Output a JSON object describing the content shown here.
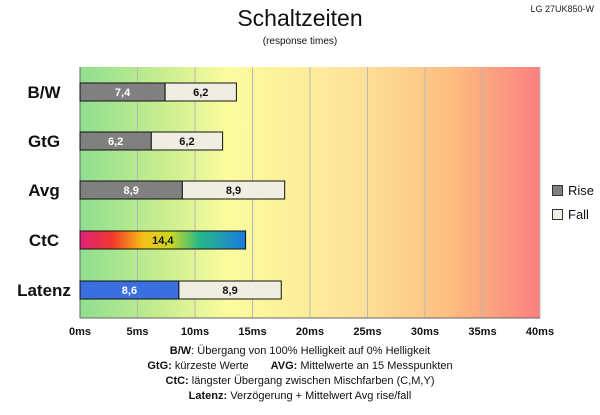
{
  "header": {
    "model": "LG 27UK850-W",
    "title": "Schaltzeiten",
    "subtitle": "(response times)"
  },
  "legend": {
    "rise_label": "Rise",
    "fall_label": "Fall"
  },
  "notes": {
    "bw_key": "B/W",
    "bw_text": ":  Übergang von 100% Helligkeit auf 0% Helligkeit",
    "gtg_key": "GtG:",
    "gtg_text": " kürzeste  Werte",
    "avg_key": "AVG:",
    "avg_text": " Mittelwerte  an 15 Messpunkten",
    "ctc_key": "CtC:",
    "ctc_text": " längster Übergang  zwischen Mischfarben  (C,M,Y)",
    "latenz_key": "Latenz:",
    "latenz_text": " Verzögerung  + Mittelwert  Avg rise/fall"
  },
  "chart_data": {
    "type": "bar",
    "orientation": "horizontal",
    "stacked": true,
    "title": "Schaltzeiten",
    "subtitle": "(response times)",
    "categories": [
      "B/W",
      "GtG",
      "Avg",
      "CtC",
      "Latenz"
    ],
    "series": [
      {
        "name": "Rise",
        "values": [
          7.4,
          6.2,
          8.9,
          14.4,
          8.6
        ],
        "color": "#808080"
      },
      {
        "name": "Fall",
        "values": [
          6.2,
          6.2,
          8.9,
          0,
          8.9
        ],
        "color": "#f0ede3"
      }
    ],
    "data_labels": [
      [
        "7,4",
        "6,2"
      ],
      [
        "6,2",
        "6,2"
      ],
      [
        "8,9",
        "8,9"
      ],
      [
        "14,4",
        ""
      ],
      [
        "8,6",
        "8,9"
      ]
    ],
    "special_colors": {
      "CtC": "rainbow",
      "Latenz_first": "#3b6fe0"
    },
    "x_ticks": [
      "0ms",
      "5ms",
      "10ms",
      "15ms",
      "20ms",
      "25ms",
      "30ms",
      "35ms",
      "40ms"
    ],
    "xlim": [
      0,
      40
    ],
    "grid": true,
    "legend_position": "right",
    "background": "gradient green-yellow-red",
    "colors": {
      "green": "#8fdf8f",
      "yellow": "#fcfc9e",
      "orange": "#fdbf80",
      "red": "#fc8080"
    }
  }
}
